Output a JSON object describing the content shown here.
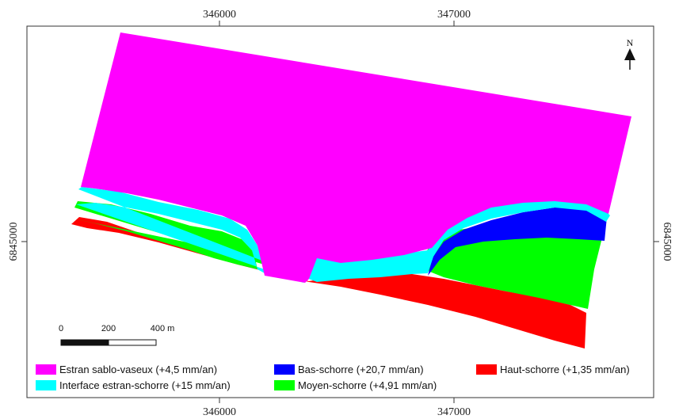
{
  "map": {
    "coordinates": {
      "x_top": [
        "346000",
        "347000"
      ],
      "x_bottom": [
        "346000",
        "347000"
      ],
      "y_left": "6845000",
      "y_right": "6845000"
    },
    "north_arrow": {
      "label": "N",
      "icon": "north-arrow-icon"
    },
    "scale_bar": {
      "labels": [
        "0",
        "200",
        "400 m"
      ]
    },
    "zones": [
      {
        "key": "estran",
        "label": "Estran sablo-vaseux (+4,5 mm/an)",
        "color": "#ff00ff"
      },
      {
        "key": "interface",
        "label": "Interface estran-schorre (+15 mm/an)",
        "color": "#00ffff"
      },
      {
        "key": "bas",
        "label": "Bas-schorre (+20,7 mm/an)",
        "color": "#0000ff"
      },
      {
        "key": "moyen",
        "label": "Moyen-schorre (+4,91 mm/an)",
        "color": "#00ff00"
      },
      {
        "key": "haut",
        "label": "Haut-schorre (+1,35 mm/an)",
        "color": "#ff0000"
      }
    ]
  }
}
